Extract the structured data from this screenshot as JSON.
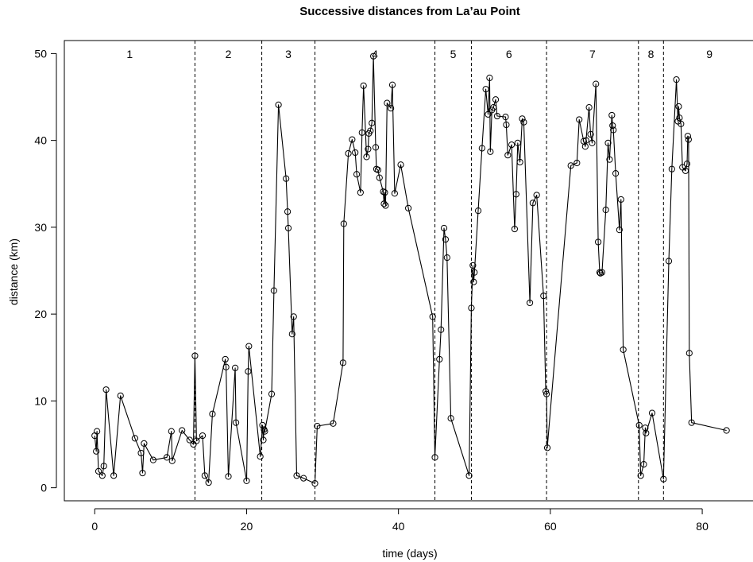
{
  "chart_data": {
    "type": "line",
    "title": "Successive distances from La’au Point",
    "xlabel": "time (days)",
    "ylabel": "distance (km)",
    "xlim": [
      -4,
      87
    ],
    "ylim": [
      -1.5,
      51.5
    ],
    "xticks": [
      0,
      20,
      40,
      60,
      80
    ],
    "yticks": [
      0,
      10,
      20,
      30,
      40,
      50
    ],
    "grid": false,
    "markers": "open-circle",
    "line_color": "#000000",
    "segments": {
      "labels": [
        "1",
        "2",
        "3",
        "4",
        "5",
        "6",
        "7",
        "8",
        "9"
      ],
      "boundaries": [
        13.2,
        22.0,
        29.0,
        44.8,
        49.6,
        59.5,
        71.6,
        74.9
      ]
    },
    "series": [
      {
        "x": [
          0.0,
          0.2,
          0.3,
          0.5,
          1.0,
          1.2,
          1.5,
          2.5,
          3.4,
          5.3,
          6.1,
          6.3,
          6.5,
          7.7,
          9.5,
          10.1,
          10.2,
          11.5,
          12.5,
          13.0,
          13.2,
          13.4,
          14.2,
          14.5,
          15.0,
          15.5,
          17.2,
          17.3,
          17.6,
          18.5,
          18.6,
          20.0,
          20.2,
          20.3,
          21.8,
          22.1,
          22.2,
          22.3,
          22.4,
          23.3,
          23.6,
          24.2,
          25.2,
          25.4,
          25.5,
          26.0,
          26.2,
          26.6,
          27.5,
          29.0,
          29.3,
          31.4,
          32.7,
          32.8,
          33.4,
          33.9,
          34.3,
          34.5,
          35.0,
          35.2,
          35.4,
          35.8,
          36.0,
          36.1,
          36.3,
          36.5,
          36.7,
          37.0,
          37.1,
          37.3,
          37.5,
          38.0,
          38.1,
          38.2,
          38.3,
          38.5,
          39.0,
          39.2,
          39.5,
          40.3,
          41.3,
          44.5,
          44.8,
          45.4,
          45.6,
          46.0,
          46.2,
          46.4,
          46.9,
          49.3,
          49.6,
          49.8,
          49.9,
          50.0,
          50.5,
          51.0,
          51.5,
          51.8,
          52.0,
          52.1,
          52.3,
          52.5,
          52.8,
          53.0,
          54.1,
          54.2,
          54.4,
          54.9,
          55.3,
          55.5,
          55.7,
          56.0,
          56.3,
          56.5,
          57.3,
          57.7,
          58.2,
          59.1,
          59.4,
          59.5,
          59.6,
          62.7,
          63.5,
          63.8,
          64.4,
          64.6,
          64.7,
          65.1,
          65.3,
          65.5,
          66.0,
          66.3,
          66.5,
          66.6,
          66.8,
          67.3,
          67.6,
          67.8,
          68.1,
          68.2,
          68.3,
          68.6,
          69.1,
          69.3,
          69.6,
          71.7,
          71.9,
          72.3,
          72.5,
          72.6,
          73.4,
          74.9,
          75.6,
          76.0,
          76.6,
          76.8,
          76.9,
          77.0,
          77.2,
          77.4,
          77.8,
          78.0,
          78.1,
          78.2,
          78.3,
          78.6,
          83.2
        ],
        "y": [
          6.0,
          4.2,
          6.5,
          1.9,
          1.4,
          2.5,
          11.3,
          1.4,
          10.6,
          5.7,
          4.0,
          1.7,
          5.1,
          3.2,
          3.5,
          6.5,
          3.1,
          6.6,
          5.5,
          5.0,
          15.2,
          5.4,
          6.0,
          1.4,
          0.6,
          8.5,
          14.8,
          13.9,
          1.3,
          13.8,
          7.5,
          0.8,
          13.4,
          16.3,
          3.6,
          7.2,
          5.5,
          6.7,
          6.5,
          10.8,
          22.7,
          44.1,
          35.6,
          31.8,
          29.9,
          17.7,
          19.7,
          1.4,
          1.1,
          0.5,
          7.1,
          7.4,
          14.4,
          30.4,
          38.5,
          40.1,
          38.6,
          36.1,
          34.0,
          40.9,
          46.3,
          38.1,
          39.0,
          40.8,
          41.1,
          42.0,
          49.7,
          39.2,
          36.7,
          36.6,
          35.7,
          34.1,
          32.7,
          34.0,
          32.5,
          44.3,
          43.7,
          46.4,
          33.9,
          37.2,
          32.2,
          19.7,
          3.5,
          14.8,
          18.2,
          29.9,
          28.6,
          26.5,
          8.0,
          1.4,
          20.7,
          25.6,
          23.7,
          24.8,
          31.9,
          39.1,
          45.9,
          43.0,
          47.2,
          38.7,
          43.5,
          43.8,
          44.7,
          42.8,
          42.7,
          41.8,
          38.3,
          39.5,
          29.8,
          33.8,
          39.7,
          37.5,
          42.5,
          42.1,
          21.3,
          32.8,
          33.7,
          22.1,
          11.1,
          10.8,
          4.6,
          37.1,
          37.4,
          42.4,
          39.9,
          39.3,
          40.0,
          43.8,
          40.7,
          39.7,
          46.5,
          28.3,
          24.8,
          24.7,
          24.8,
          32.0,
          39.7,
          37.8,
          42.9,
          41.7,
          41.2,
          36.2,
          29.7,
          33.2,
          15.9,
          7.2,
          1.4,
          2.7,
          6.9,
          6.3,
          8.6,
          1.0,
          26.1,
          36.7,
          47.0,
          42.2,
          43.9,
          42.6,
          41.9,
          36.9,
          36.5,
          37.3,
          40.5,
          40.1,
          15.5,
          7.5,
          6.6
        ]
      }
    ]
  }
}
